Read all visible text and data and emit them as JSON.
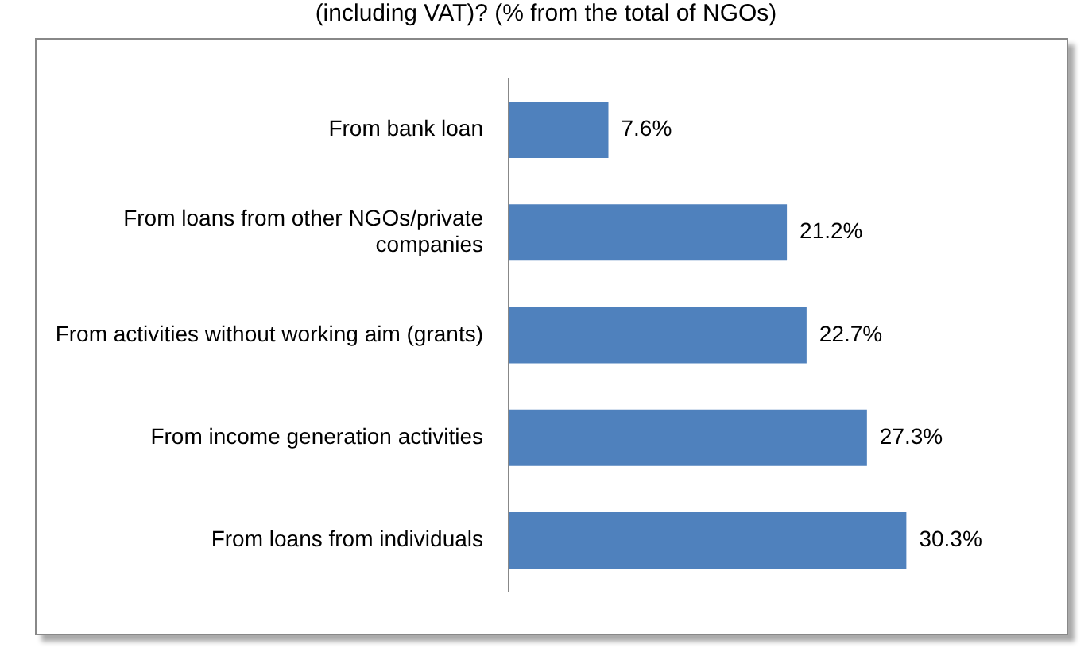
{
  "chart_data": {
    "type": "bar",
    "orientation": "horizontal",
    "title": "(including VAT)? (% from the total of NGOs)",
    "categories": [
      "From bank loan",
      "From loans from other NGOs/private companies",
      "From activities without working aim (grants)",
      "From income generation activities",
      "From loans from individuals"
    ],
    "values": [
      7.6,
      21.2,
      22.7,
      27.3,
      30.3
    ],
    "value_labels": [
      "7.6%",
      "21.2%",
      "22.7%",
      "27.3%",
      "30.3%"
    ],
    "color": "#4f81bd",
    "grid": false,
    "legend": false,
    "tick_labels": "y"
  }
}
